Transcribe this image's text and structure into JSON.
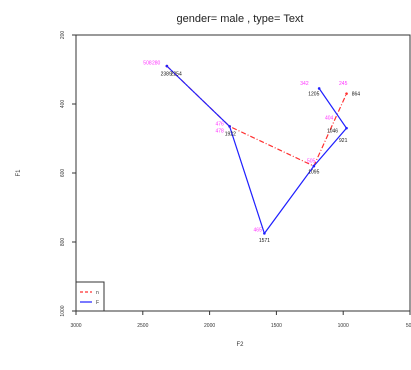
{
  "chart_data": {
    "type": "line",
    "title": "gender= male , type= Text",
    "xlabel": "F2",
    "ylabel": "F1",
    "x_reversed": true,
    "y_reversed": true,
    "xlim": [
      3000,
      500
    ],
    "ylim": [
      200,
      1000
    ],
    "x_ticks": [
      3000,
      2500,
      2000,
      1500,
      1000,
      500
    ],
    "x_tick_labels": [
      "3000",
      "2500",
      "2000",
      "1500",
      "1000",
      "500"
    ],
    "y_ticks": [
      200,
      400,
      600,
      800,
      1000
    ],
    "y_tick_labels": [
      "200",
      "400",
      "600",
      "800",
      "1000"
    ],
    "legend": {
      "placement": "bottom-left",
      "entries": [
        {
          "name": "n",
          "color": "#ff3030",
          "dash": true
        },
        {
          "name": "F",
          "color": "#2020ff",
          "dash": false
        }
      ]
    },
    "series": [
      {
        "name": "n",
        "color": "#ff3030",
        "style": "dashed",
        "points": [
          {
            "x": 2320,
            "y": 290
          },
          {
            "x": 1850,
            "y": 465
          },
          {
            "x": 1220,
            "y": 580
          },
          {
            "x": 975,
            "y": 370
          }
        ]
      },
      {
        "name": "F",
        "color": "#2020ff",
        "style": "solid",
        "points": [
          {
            "x": 2320,
            "y": 290
          },
          {
            "x": 1850,
            "y": 465
          },
          {
            "x": 1590,
            "y": 775
          },
          {
            "x": 1220,
            "y": 580
          },
          {
            "x": 975,
            "y": 470
          },
          {
            "x": 1180,
            "y": 355
          }
        ]
      }
    ],
    "point_labels": [
      {
        "x": 2465,
        "y": 285,
        "text": "508",
        "color": "#ff33ff"
      },
      {
        "x": 2400,
        "y": 285,
        "text": "280",
        "color": "#ff33ff"
      },
      {
        "x": 2325,
        "y": 318,
        "text": "2389",
        "color": "#111111"
      },
      {
        "x": 2250,
        "y": 318,
        "text": "2254",
        "color": "#111111"
      },
      {
        "x": 1925,
        "y": 462,
        "text": "476",
        "color": "#ff33ff"
      },
      {
        "x": 1925,
        "y": 482,
        "text": "478",
        "color": "#ff33ff"
      },
      {
        "x": 1845,
        "y": 492,
        "text": "1922",
        "color": "#111111"
      },
      {
        "x": 1640,
        "y": 770,
        "text": "465",
        "color": "#ff33ff"
      },
      {
        "x": 1590,
        "y": 800,
        "text": "1571",
        "color": "#111111"
      },
      {
        "x": 1240,
        "y": 570,
        "text": "505",
        "color": "#ff33ff"
      },
      {
        "x": 1220,
        "y": 602,
        "text": "1095",
        "color": "#111111"
      },
      {
        "x": 1290,
        "y": 345,
        "text": "342",
        "color": "#ff33ff"
      },
      {
        "x": 1220,
        "y": 375,
        "text": "1205",
        "color": "#111111"
      },
      {
        "x": 1105,
        "y": 445,
        "text": "404",
        "color": "#ff33ff"
      },
      {
        "x": 1080,
        "y": 482,
        "text": "1046",
        "color": "#111111"
      },
      {
        "x": 1000,
        "y": 510,
        "text": "921",
        "color": "#111111"
      },
      {
        "x": 1000,
        "y": 345,
        "text": "245",
        "color": "#ff33ff"
      },
      {
        "x": 905,
        "y": 375,
        "text": "864",
        "color": "#111111"
      }
    ]
  }
}
